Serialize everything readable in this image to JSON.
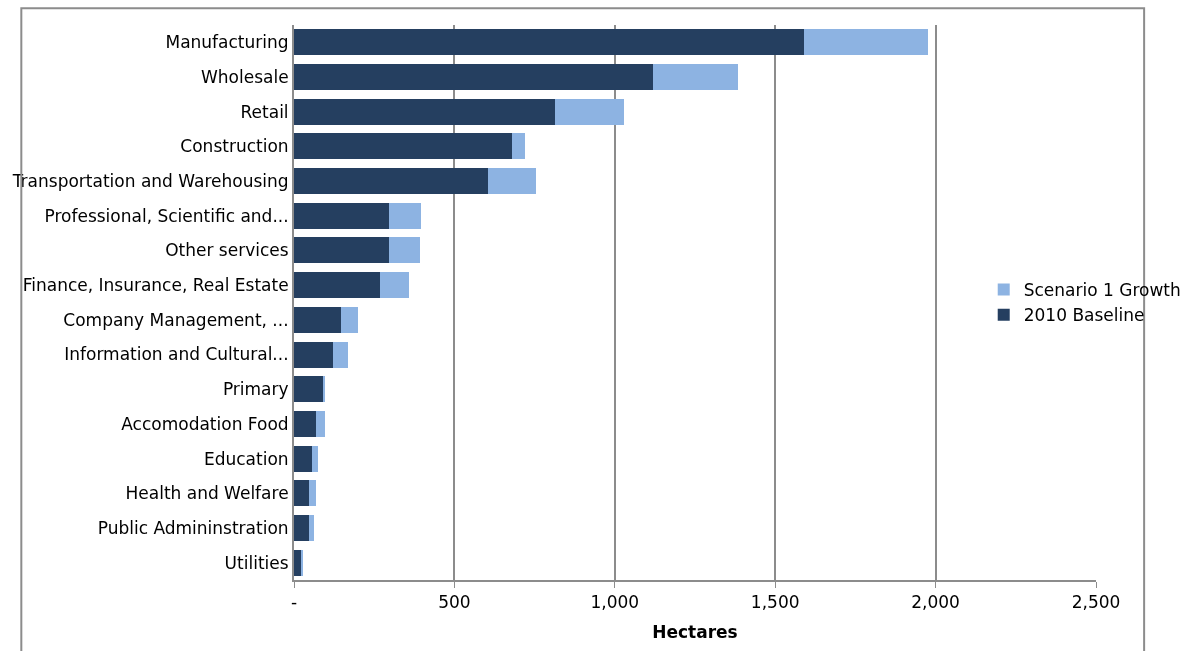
{
  "chart_data": {
    "type": "bar",
    "orientation": "horizontal",
    "stacked": true,
    "xlabel": "Hectares",
    "categories": [
      "Manufacturing",
      "Wholesale",
      "Retail",
      "Construction",
      "Transportation and Warehousing",
      "Professional, Scientific and...",
      "Other services",
      "Finance, Insurance, Real Estate",
      "Company Management, ...",
      "Information and Cultural...",
      "Primary",
      "Accomodation Food",
      "Education",
      "Health and Welfare",
      "Public Admininstration",
      "Utilities"
    ],
    "series": [
      {
        "name": "2010 Baseline",
        "color": "#253f60",
        "values": [
          1590,
          1120,
          815,
          680,
          605,
          297,
          297,
          269,
          148,
          121,
          90,
          69,
          55,
          48,
          48,
          21
        ]
      },
      {
        "name": "Scenario 1 Growth",
        "color": "#8db3e2",
        "values": [
          385,
          265,
          215,
          40,
          150,
          100,
          95,
          90,
          50,
          48,
          7,
          28,
          21,
          21,
          14,
          7
        ]
      }
    ],
    "xlim": [
      0,
      2500
    ],
    "xticks": [
      {
        "value": 0,
        "label": "-"
      },
      {
        "value": 500,
        "label": "500"
      },
      {
        "value": 1000,
        "label": "1,000"
      },
      {
        "value": 1500,
        "label": "1,500"
      },
      {
        "value": 2000,
        "label": "2,000"
      },
      {
        "value": 2500,
        "label": "2,500"
      }
    ],
    "grid": "x",
    "legend": "right"
  }
}
